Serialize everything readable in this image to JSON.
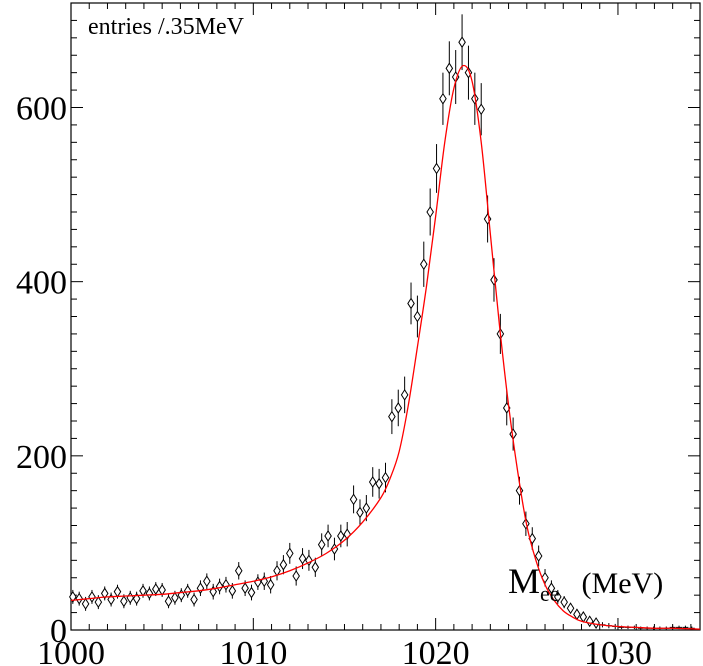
{
  "chart_data": {
    "type": "scatter",
    "corner_label": "entries /.35MeV",
    "xlabel": {
      "main": "M",
      "subscript": "ee",
      "unit": "(MeV)"
    },
    "xlim": [
      1000,
      1034.5
    ],
    "ylim": [
      0,
      720
    ],
    "x_ticks": [
      1000,
      1010,
      1020,
      1030
    ],
    "x_tick_labels": [
      "1000",
      "1010",
      "1020",
      "1030"
    ],
    "y_ticks": [
      0,
      200,
      400,
      600
    ],
    "y_tick_labels": [
      "0",
      "200",
      "400",
      "600"
    ],
    "grid": false,
    "colors": {
      "fit_curve": "#ff0000",
      "markers": "#000000"
    },
    "series": [
      {
        "type": "points_with_errors",
        "x": [
          1000.1,
          1000.45,
          1000.8,
          1001.15,
          1001.5,
          1001.85,
          1002.2,
          1002.55,
          1002.9,
          1003.25,
          1003.6,
          1003.95,
          1004.3,
          1004.65,
          1005.0,
          1005.35,
          1005.7,
          1006.05,
          1006.4,
          1006.75,
          1007.1,
          1007.45,
          1007.8,
          1008.15,
          1008.5,
          1008.85,
          1009.2,
          1009.55,
          1009.9,
          1010.25,
          1010.6,
          1010.95,
          1011.3,
          1011.65,
          1012.0,
          1012.35,
          1012.7,
          1013.05,
          1013.4,
          1013.75,
          1014.1,
          1014.45,
          1014.8,
          1015.15,
          1015.5,
          1015.85,
          1016.2,
          1016.55,
          1016.9,
          1017.25,
          1017.6,
          1017.95,
          1018.3,
          1018.65,
          1019.0,
          1019.35,
          1019.7,
          1020.05,
          1020.4,
          1020.75,
          1021.1,
          1021.45,
          1021.8,
          1022.15,
          1022.5,
          1022.85,
          1023.2,
          1023.55,
          1023.9,
          1024.25,
          1024.6,
          1024.95,
          1025.3,
          1025.65,
          1026.0,
          1026.35,
          1026.7,
          1027.05,
          1027.4,
          1027.75,
          1028.1,
          1028.45,
          1028.8,
          1029.15,
          1029.5,
          1029.85,
          1030.2,
          1030.55,
          1030.9,
          1031.25,
          1031.6,
          1031.95,
          1032.3,
          1032.65,
          1033.0,
          1033.35,
          1033.7,
          1034.05
        ],
        "y": [
          38,
          36,
          30,
          38,
          32,
          42,
          35,
          44,
          33,
          37,
          36,
          45,
          42,
          47,
          46,
          33,
          37,
          40,
          45,
          35,
          48,
          56,
          44,
          50,
          52,
          45,
          68,
          48,
          43,
          55,
          56,
          52,
          68,
          75,
          88,
          62,
          82,
          80,
          72,
          98,
          108,
          93,
          108,
          110,
          150,
          135,
          140,
          170,
          168,
          175,
          245,
          255,
          270,
          375,
          360,
          420,
          480,
          530,
          610,
          645,
          635,
          675,
          640,
          610,
          598,
          472,
          402,
          340,
          255,
          225,
          160,
          122,
          105,
          85,
          60,
          48,
          38,
          32,
          25,
          18,
          15,
          10,
          8,
          6,
          5,
          4,
          3,
          3,
          3,
          2,
          2,
          2,
          2,
          2,
          3,
          3,
          3,
          2
        ],
        "err": [
          8,
          8,
          8,
          8,
          8,
          8,
          8,
          8,
          8,
          8,
          8,
          8,
          8,
          8,
          8,
          8,
          8,
          8,
          8,
          8,
          9,
          9,
          9,
          9,
          9,
          9,
          10,
          9,
          9,
          9,
          10,
          10,
          11,
          11,
          12,
          11,
          12,
          12,
          11,
          13,
          13,
          13,
          13,
          14,
          16,
          15,
          15,
          17,
          17,
          17,
          20,
          21,
          21,
          24,
          24,
          26,
          27,
          28,
          30,
          31,
          31,
          32,
          31,
          30,
          30,
          27,
          25,
          23,
          20,
          19,
          16,
          14,
          13,
          12,
          10,
          9,
          8,
          7,
          6,
          6,
          5,
          4,
          4,
          3,
          3,
          3,
          2,
          2,
          2,
          2,
          2,
          2,
          2,
          2,
          2,
          2,
          2,
          2
        ]
      },
      {
        "type": "fit_curve",
        "x": [
          1000,
          1001,
          1002,
          1003,
          1004,
          1005,
          1006,
          1007,
          1008,
          1009,
          1010,
          1011,
          1012,
          1013,
          1014,
          1015,
          1016,
          1017,
          1017.5,
          1018,
          1018.5,
          1019,
          1019.5,
          1020,
          1020.5,
          1021,
          1021.5,
          1022,
          1022.5,
          1023,
          1023.5,
          1024,
          1024.5,
          1025,
          1025.5,
          1026,
          1026.5,
          1027,
          1027.5,
          1028,
          1029,
          1030,
          1031,
          1032,
          1033,
          1034.5
        ],
        "y": [
          34,
          36,
          38,
          39,
          40,
          41,
          43,
          45,
          48,
          52,
          56,
          61,
          68,
          77,
          88,
          103,
          124,
          152,
          174,
          205,
          258,
          325,
          395,
          475,
          560,
          622,
          648,
          630,
          560,
          455,
          350,
          258,
          182,
          120,
          80,
          52,
          34,
          22,
          15,
          10,
          6,
          4,
          3,
          2,
          2,
          1
        ]
      }
    ]
  }
}
